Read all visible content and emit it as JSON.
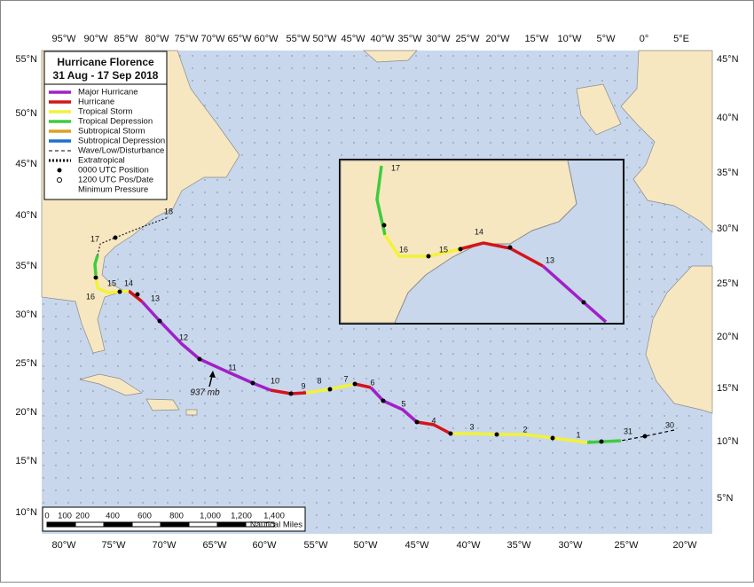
{
  "header": {
    "title": "Hurricane Florence",
    "subtitle": "31 Aug - 17 Sep 2018"
  },
  "legend": [
    "Major Hurricane",
    "Hurricane",
    "Tropical Storm",
    "Tropical Depression",
    "Subtropical Storm",
    "Subtropical Depression",
    "Wave/Low/Disturbance",
    "Extratropical",
    "0000 UTC Position",
    "1200 UTC Pos/Date",
    "Minimum Pressure"
  ],
  "axes": {
    "top": [
      "95°W",
      "90°W",
      "85°W",
      "80°W",
      "75°W",
      "70°W",
      "65°W",
      "60°W",
      "55°W",
      "50°W",
      "45°W",
      "40°W",
      "35°W",
      "30°W",
      "25°W",
      "20°W",
      "15°W",
      "10°W",
      "5°W",
      "0°",
      "5°E"
    ],
    "bottom": [
      "80°W",
      "75°W",
      "70°W",
      "65°W",
      "60°W",
      "55°W",
      "50°W",
      "45°W",
      "40°W",
      "35°W",
      "30°W",
      "25°W",
      "20°W"
    ],
    "left": [
      "55°N",
      "50°N",
      "45°N",
      "40°N",
      "35°N",
      "30°N",
      "25°N",
      "20°N",
      "15°N",
      "10°N"
    ],
    "right": [
      "45°N",
      "40°N",
      "35°N",
      "30°N",
      "25°N",
      "20°N",
      "15°N",
      "10°N",
      "5°N"
    ]
  },
  "track_labels": [
    "30",
    "31",
    "1",
    "2",
    "3",
    "4",
    "5",
    "6",
    "7",
    "8",
    "9",
    "10",
    "11",
    "12",
    "13",
    "14",
    "15",
    "16",
    "17",
    "18"
  ],
  "inset_labels": [
    "17",
    "16",
    "15",
    "14",
    "13"
  ],
  "annotation": "937 mb",
  "scale": {
    "ticks": [
      "0",
      "100",
      "200",
      "400",
      "600",
      "800",
      "1,000",
      "1,200",
      "1,400"
    ],
    "unit": "Nautical Miles"
  }
}
